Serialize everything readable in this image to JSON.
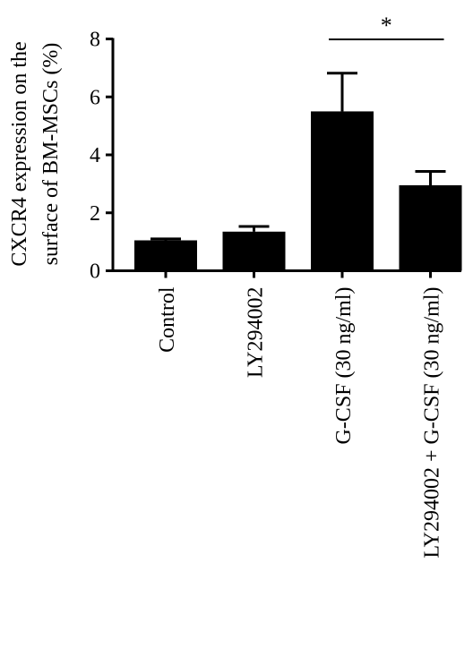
{
  "chart_data": {
    "type": "bar",
    "ylabel_lines": [
      "CXCR4 expression on the",
      "surface of BM-MSCs (%)"
    ],
    "ylim": [
      0,
      8
    ],
    "yticks": [
      "0",
      "2",
      "4",
      "6",
      "8"
    ],
    "categories": [
      "Control",
      "LY294002",
      "G-CSF (30 ng/ml)",
      "LY294002 + G-CSF (30 ng/ml)"
    ],
    "values": [
      1.05,
      1.35,
      5.5,
      2.95
    ],
    "errors": [
      0.05,
      0.18,
      1.32,
      0.48
    ],
    "significance": {
      "from": 2,
      "to": 3,
      "label": "*"
    },
    "bar_color": "#000000",
    "grid": false
  }
}
